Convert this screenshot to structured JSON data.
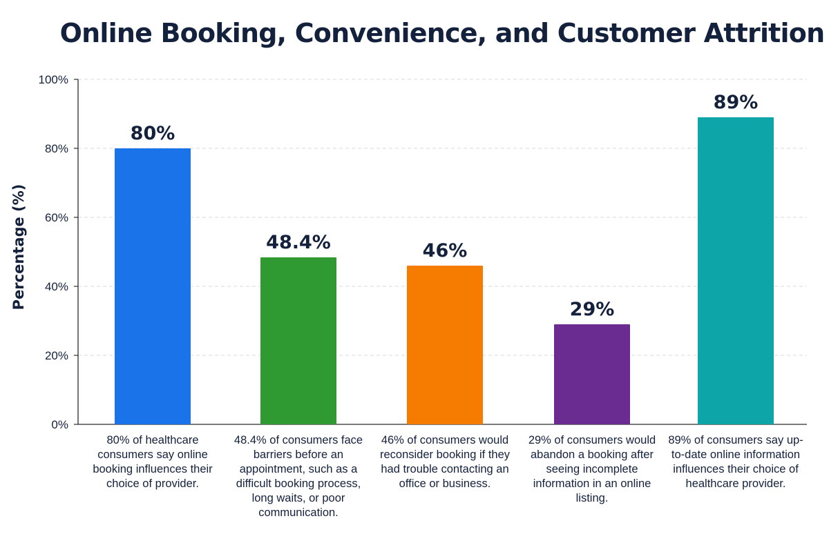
{
  "chart_data": {
    "type": "bar",
    "title": "Online Booking, Convenience, and Customer Attrition",
    "ylabel": "Percentage (%)",
    "xlabel": "",
    "ylim": [
      0,
      100
    ],
    "yticks": [
      "0%",
      "20%",
      "40%",
      "60%",
      "80%",
      "100%"
    ],
    "ytick_values": [
      0,
      20,
      40,
      60,
      80,
      100
    ],
    "grid": true,
    "categories": [
      "80% of healthcare consumers say online booking influences their choice of provider.",
      "48.4% of consumers face barriers before an appointment, such as a difficult booking process, long waits, or poor communication.",
      "46% of consumers would reconsider booking if they had trouble contacting an office or business.",
      "29% of consumers would abandon a booking after seeing incomplete information in an online listing.",
      "89% of consumers say up-to-date online information influences their choice of healthcare provider."
    ],
    "values": [
      80,
      48.4,
      46,
      29,
      89
    ],
    "value_labels": [
      "80%",
      "48.4%",
      "46%",
      "29%",
      "89%"
    ],
    "colors": [
      "#1a73e8",
      "#2e9a31",
      "#f57c00",
      "#6a2c91",
      "#0ea5a8"
    ]
  }
}
